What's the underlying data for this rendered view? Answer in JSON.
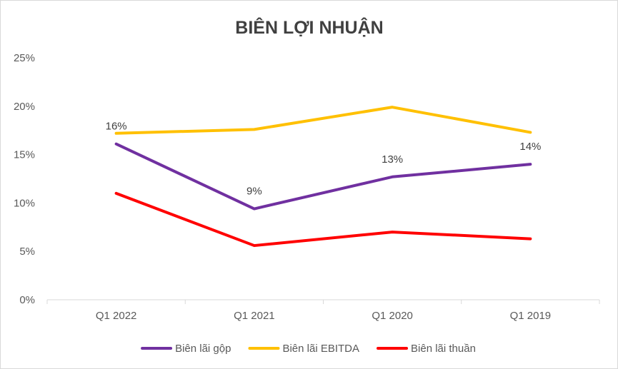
{
  "chart_data": {
    "type": "line",
    "title": "BIÊN LỢI NHUẬN",
    "xlabel": "",
    "ylabel": "",
    "categories": [
      "Q1 2022",
      "Q1 2021",
      "Q1 2020",
      "Q1 2019"
    ],
    "ylim": [
      0,
      25
    ],
    "yticks": [
      0,
      5,
      10,
      15,
      20,
      25
    ],
    "ytick_labels": [
      "0%",
      "5%",
      "10%",
      "15%",
      "20%",
      "25%"
    ],
    "grid": false,
    "legend_position": "bottom",
    "series": [
      {
        "name": "Biên lãi gộp",
        "color": "#7030a0",
        "values": [
          16.1,
          9.4,
          12.7,
          14.0
        ],
        "data_labels": [
          "16%",
          "9%",
          "13%",
          "14%"
        ]
      },
      {
        "name": "Biên lãi EBITDA",
        "color": "#ffc000",
        "values": [
          17.2,
          17.6,
          19.9,
          17.3
        ]
      },
      {
        "name": "Biên lãi thuần",
        "color": "#ff0000",
        "values": [
          11.0,
          5.6,
          7.0,
          6.3
        ]
      }
    ]
  }
}
